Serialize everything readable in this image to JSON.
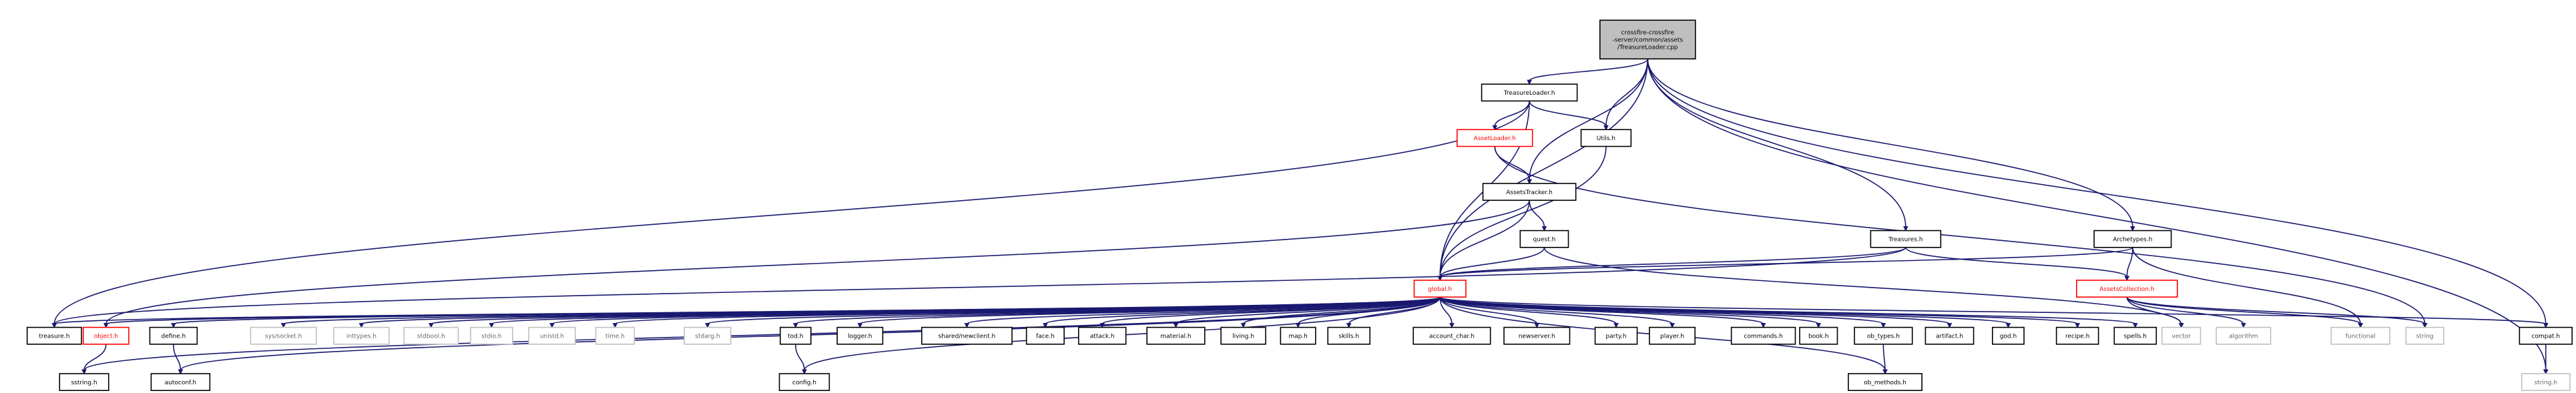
{
  "colors": {
    "edge": "#191970",
    "node_border": "#000000",
    "node_fill": "#ffffff",
    "main_fill": "#bfbfbf",
    "truncated_border": "#ff0000",
    "system_border": "#bfbfbf",
    "text": "#000000",
    "truncated_text": "#ff0000",
    "system_text": "#666666"
  },
  "nodes": [
    {
      "id": "main",
      "lines": [
        "crossfire-crossfire",
        "-server/common/assets",
        "/TreasureLoader.cpp"
      ],
      "kind": "main"
    },
    {
      "id": "treasureloader_h",
      "lines": [
        "TreasureLoader.h"
      ],
      "kind": "normal"
    },
    {
      "id": "assetloader_h",
      "lines": [
        "AssetLoader.h"
      ],
      "kind": "truncated"
    },
    {
      "id": "utils_h",
      "lines": [
        "Utils.h"
      ],
      "kind": "normal"
    },
    {
      "id": "assetstracker_h",
      "lines": [
        "AssetsTracker.h"
      ],
      "kind": "normal"
    },
    {
      "id": "quest_h",
      "lines": [
        "quest.h"
      ],
      "kind": "normal"
    },
    {
      "id": "treasures_h",
      "lines": [
        "Treasures.h"
      ],
      "kind": "normal"
    },
    {
      "id": "archetypes_h",
      "lines": [
        "Archetypes.h"
      ],
      "kind": "normal"
    },
    {
      "id": "assetscollection_h",
      "lines": [
        "AssetsCollection.h"
      ],
      "kind": "truncated"
    },
    {
      "id": "global_h",
      "lines": [
        "global.h"
      ],
      "kind": "truncated"
    },
    {
      "id": "treasure_h",
      "lines": [
        "treasure.h"
      ],
      "kind": "normal"
    },
    {
      "id": "object_h",
      "lines": [
        "object.h"
      ],
      "kind": "truncated"
    },
    {
      "id": "define_h",
      "lines": [
        "define.h"
      ],
      "kind": "normal"
    },
    {
      "id": "sys_socket_h",
      "lines": [
        "sys/socket.h"
      ],
      "kind": "system"
    },
    {
      "id": "inttypes_h",
      "lines": [
        "inttypes.h"
      ],
      "kind": "system"
    },
    {
      "id": "stdbool_h",
      "lines": [
        "stdbool.h"
      ],
      "kind": "system"
    },
    {
      "id": "stdio_h",
      "lines": [
        "stdio.h"
      ],
      "kind": "system"
    },
    {
      "id": "unistd_h",
      "lines": [
        "unistd.h"
      ],
      "kind": "system"
    },
    {
      "id": "time_h",
      "lines": [
        "time.h"
      ],
      "kind": "system"
    },
    {
      "id": "stdarg_h",
      "lines": [
        "stdarg.h"
      ],
      "kind": "system"
    },
    {
      "id": "tod_h",
      "lines": [
        "tod.h"
      ],
      "kind": "normal"
    },
    {
      "id": "logger_h",
      "lines": [
        "logger.h"
      ],
      "kind": "normal"
    },
    {
      "id": "shared_newclient_h",
      "lines": [
        "shared/newclient.h"
      ],
      "kind": "normal"
    },
    {
      "id": "face_h",
      "lines": [
        "face.h"
      ],
      "kind": "normal"
    },
    {
      "id": "attack_h",
      "lines": [
        "attack.h"
      ],
      "kind": "normal"
    },
    {
      "id": "material_h",
      "lines": [
        "material.h"
      ],
      "kind": "normal"
    },
    {
      "id": "living_h",
      "lines": [
        "living.h"
      ],
      "kind": "normal"
    },
    {
      "id": "map_h",
      "lines": [
        "map.h"
      ],
      "kind": "normal"
    },
    {
      "id": "skills_h",
      "lines": [
        "skills.h"
      ],
      "kind": "normal"
    },
    {
      "id": "account_char_h",
      "lines": [
        "account_char.h"
      ],
      "kind": "normal"
    },
    {
      "id": "newserver_h",
      "lines": [
        "newserver.h"
      ],
      "kind": "normal"
    },
    {
      "id": "party_h",
      "lines": [
        "party.h"
      ],
      "kind": "normal"
    },
    {
      "id": "player_h",
      "lines": [
        "player.h"
      ],
      "kind": "normal"
    },
    {
      "id": "commands_h",
      "lines": [
        "commands.h"
      ],
      "kind": "normal"
    },
    {
      "id": "book_h",
      "lines": [
        "book.h"
      ],
      "kind": "normal"
    },
    {
      "id": "ob_types_h",
      "lines": [
        "ob_types.h"
      ],
      "kind": "normal"
    },
    {
      "id": "artifact_h",
      "lines": [
        "artifact.h"
      ],
      "kind": "normal"
    },
    {
      "id": "god_h",
      "lines": [
        "god.h"
      ],
      "kind": "normal"
    },
    {
      "id": "recipe_h",
      "lines": [
        "recipe.h"
      ],
      "kind": "normal"
    },
    {
      "id": "spells_h",
      "lines": [
        "spells.h"
      ],
      "kind": "normal"
    },
    {
      "id": "vector",
      "lines": [
        "vector"
      ],
      "kind": "system"
    },
    {
      "id": "algorithm",
      "lines": [
        "algorithm"
      ],
      "kind": "system"
    },
    {
      "id": "functional",
      "lines": [
        "functional"
      ],
      "kind": "system"
    },
    {
      "id": "string",
      "lines": [
        "string"
      ],
      "kind": "system"
    },
    {
      "id": "compat_h",
      "lines": [
        "compat.h"
      ],
      "kind": "normal"
    },
    {
      "id": "sstring_h",
      "lines": [
        "sstring.h"
      ],
      "kind": "normal"
    },
    {
      "id": "autoconf_h",
      "lines": [
        "autoconf.h"
      ],
      "kind": "normal"
    },
    {
      "id": "config_h",
      "lines": [
        "config.h"
      ],
      "kind": "normal"
    },
    {
      "id": "ob_methods_h",
      "lines": [
        "ob_methods.h"
      ],
      "kind": "normal"
    },
    {
      "id": "string_h",
      "lines": [
        "string.h"
      ],
      "kind": "system"
    }
  ],
  "edges": [
    [
      "main",
      "treasureloader_h"
    ],
    [
      "main",
      "assetstracker_h"
    ],
    [
      "main",
      "utils_h"
    ],
    [
      "main",
      "global_h"
    ],
    [
      "main",
      "treasures_h"
    ],
    [
      "main",
      "archetypes_h"
    ],
    [
      "main",
      "compat_h"
    ],
    [
      "main",
      "string_h"
    ],
    [
      "treasureloader_h",
      "assetloader_h"
    ],
    [
      "treasureloader_h",
      "utils_h"
    ],
    [
      "treasureloader_h",
      "global_h"
    ],
    [
      "treasureloader_h",
      "treasure_h"
    ],
    [
      "assetloader_h",
      "assetstracker_h"
    ],
    [
      "assetloader_h",
      "string"
    ],
    [
      "utils_h",
      "global_h"
    ],
    [
      "assetstracker_h",
      "quest_h"
    ],
    [
      "assetstracker_h",
      "global_h"
    ],
    [
      "assetstracker_h",
      "object_h"
    ],
    [
      "quest_h",
      "global_h"
    ],
    [
      "quest_h",
      "vector"
    ],
    [
      "treasures_h",
      "assetscollection_h"
    ],
    [
      "treasures_h",
      "global_h"
    ],
    [
      "treasures_h",
      "treasure_h"
    ],
    [
      "archetypes_h",
      "assetscollection_h"
    ],
    [
      "archetypes_h",
      "global_h"
    ],
    [
      "archetypes_h",
      "functional"
    ],
    [
      "assetscollection_h",
      "vector"
    ],
    [
      "assetscollection_h",
      "algorithm"
    ],
    [
      "assetscollection_h",
      "functional"
    ],
    [
      "assetscollection_h",
      "string"
    ],
    [
      "global_h",
      "treasure_h"
    ],
    [
      "global_h",
      "object_h"
    ],
    [
      "global_h",
      "define_h"
    ],
    [
      "global_h",
      "sys_socket_h"
    ],
    [
      "global_h",
      "inttypes_h"
    ],
    [
      "global_h",
      "stdbool_h"
    ],
    [
      "global_h",
      "stdio_h"
    ],
    [
      "global_h",
      "unistd_h"
    ],
    [
      "global_h",
      "time_h"
    ],
    [
      "global_h",
      "stdarg_h"
    ],
    [
      "global_h",
      "tod_h"
    ],
    [
      "global_h",
      "logger_h"
    ],
    [
      "global_h",
      "shared_newclient_h"
    ],
    [
      "global_h",
      "face_h"
    ],
    [
      "global_h",
      "attack_h"
    ],
    [
      "global_h",
      "material_h"
    ],
    [
      "global_h",
      "living_h"
    ],
    [
      "global_h",
      "map_h"
    ],
    [
      "global_h",
      "skills_h"
    ],
    [
      "global_h",
      "account_char_h"
    ],
    [
      "global_h",
      "newserver_h"
    ],
    [
      "global_h",
      "party_h"
    ],
    [
      "global_h",
      "player_h"
    ],
    [
      "global_h",
      "commands_h"
    ],
    [
      "global_h",
      "book_h"
    ],
    [
      "global_h",
      "ob_types_h"
    ],
    [
      "global_h",
      "artifact_h"
    ],
    [
      "global_h",
      "god_h"
    ],
    [
      "global_h",
      "recipe_h"
    ],
    [
      "global_h",
      "spells_h"
    ],
    [
      "global_h",
      "ob_methods_h"
    ],
    [
      "global_h",
      "compat_h"
    ],
    [
      "global_h",
      "sstring_h"
    ],
    [
      "global_h",
      "autoconf_h"
    ],
    [
      "global_h",
      "config_h"
    ],
    [
      "object_h",
      "sstring_h"
    ],
    [
      "define_h",
      "autoconf_h"
    ],
    [
      "tod_h",
      "config_h"
    ],
    [
      "ob_types_h",
      "ob_methods_h"
    ],
    [
      "compat_h",
      "string_h"
    ]
  ]
}
